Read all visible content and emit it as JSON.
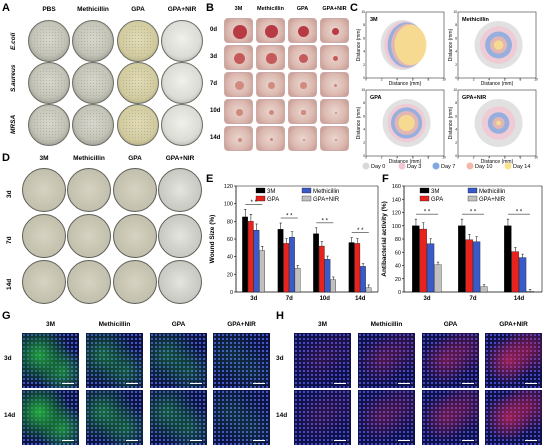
{
  "panels": {
    "A": {
      "label": "A",
      "headers": [
        "PBS",
        "Methicillin",
        "GPA",
        "GPA+NIR"
      ],
      "rows": [
        "E.coli",
        "S.aureus",
        "MRSA"
      ]
    },
    "B": {
      "label": "B",
      "headers": [
        "3M",
        "Methicillin",
        "GPA",
        "GPA+NIR"
      ],
      "rows": [
        "0d",
        "3d",
        "7d",
        "10d",
        "14d"
      ]
    },
    "C": {
      "label": "C",
      "subplots": [
        "3M",
        "Methicillin",
        "GPA",
        "GPA+NIR"
      ],
      "xlabel": "Distance (mm)",
      "ylabel": "Distance (mm)",
      "ticks": [
        "0",
        "2",
        "4",
        "6",
        "8",
        "10"
      ],
      "legend": [
        "Day 0",
        "Day 3",
        "Day 7",
        "Day 10",
        "Day 14"
      ],
      "legend_colors": [
        "#d9d9d9",
        "#f2c6d2",
        "#7fa8e0",
        "#f4b8a8",
        "#fbe38a"
      ]
    },
    "D": {
      "label": "D",
      "headers": [
        "3M",
        "Methicillin",
        "GPA",
        "GPA+NIR"
      ],
      "rows": [
        "3d",
        "7d",
        "14d"
      ]
    },
    "E": {
      "label": "E"
    },
    "F": {
      "label": "F"
    },
    "G": {
      "label": "G",
      "headers": [
        "3M",
        "Methicillin",
        "GPA",
        "GPA+NIR"
      ],
      "rows": [
        "3d",
        "14d"
      ]
    },
    "H": {
      "label": "H",
      "headers": [
        "3M",
        "Methicillin",
        "GPA",
        "GPA+NIR"
      ],
      "rows": [
        "3d",
        "14d"
      ]
    }
  },
  "chart_data": [
    {
      "id": "E",
      "type": "bar",
      "ylabel": "Wound Size (%)",
      "ylim": [
        0,
        120
      ],
      "yticks": [
        0,
        20,
        40,
        60,
        80,
        100,
        120
      ],
      "categories": [
        "3d",
        "7d",
        "10d",
        "14d"
      ],
      "series": [
        {
          "name": "3M",
          "color": "#000000",
          "values": [
            85,
            71,
            66,
            56
          ]
        },
        {
          "name": "GPA",
          "color": "#e8231e",
          "values": [
            80,
            55,
            52,
            55
          ]
        },
        {
          "name": "Methicillin",
          "color": "#3a5bc7",
          "values": [
            70,
            62,
            37,
            29
          ]
        },
        {
          "name": "GPA+NIR",
          "color": "#c0c0c0",
          "values": [
            47,
            27,
            14,
            5
          ]
        }
      ],
      "significance": "* *",
      "legend_placement": "top"
    },
    {
      "id": "F",
      "type": "bar",
      "ylabel": "Antibacterial activity (%)",
      "ylim": [
        0,
        160
      ],
      "yticks": [
        0,
        20,
        40,
        60,
        80,
        100,
        120,
        140,
        160
      ],
      "categories": [
        "3d",
        "7d",
        "14d"
      ],
      "series": [
        {
          "name": "3M",
          "color": "#000000",
          "values": [
            100,
            100,
            100
          ]
        },
        {
          "name": "GPA",
          "color": "#e8231e",
          "values": [
            95,
            79,
            61
          ]
        },
        {
          "name": "Methicillin",
          "color": "#3a5bc7",
          "values": [
            73,
            76,
            52
          ]
        },
        {
          "name": "GPA+NIR",
          "color": "#c0c0c0",
          "values": [
            41,
            8,
            1
          ]
        }
      ],
      "significance": "* *",
      "legend_placement": "top"
    }
  ]
}
